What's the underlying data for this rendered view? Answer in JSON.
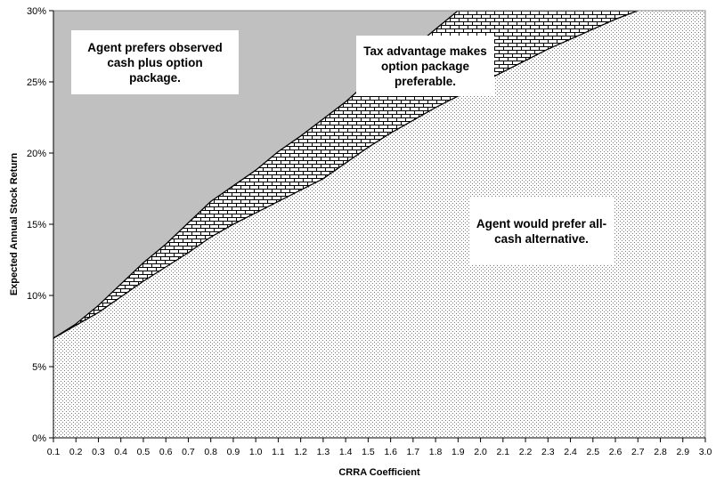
{
  "chart_data": {
    "type": "area",
    "title": "",
    "xlabel": "CRRA Coefficient",
    "ylabel": "Expected Annual Stock Return",
    "xlim": [
      0.1,
      3.0
    ],
    "ylim": [
      0,
      0.3
    ],
    "x_ticks": [
      0.1,
      0.2,
      0.3,
      0.4,
      0.5,
      0.6,
      0.7,
      0.8,
      0.9,
      1.0,
      1.1,
      1.2,
      1.3,
      1.4,
      1.5,
      1.6,
      1.7,
      1.8,
      1.9,
      2.0,
      2.1,
      2.2,
      2.3,
      2.4,
      2.5,
      2.6,
      2.7,
      2.8,
      2.9,
      3.0
    ],
    "x_tick_labels": [
      "0.1",
      "0.2",
      "0.3",
      "0.4",
      "0.5",
      "0.6",
      "0.7",
      "0.8",
      "0.9",
      "1.0",
      "1.1",
      "1.2",
      "1.3",
      "1.4",
      "1.5",
      "1.6",
      "1.7",
      "1.8",
      "1.9",
      "2.0",
      "2.1",
      "2.2",
      "2.3",
      "2.4",
      "2.5",
      "2.6",
      "2.7",
      "2.8",
      "2.9",
      "3.0"
    ],
    "y_ticks": [
      0,
      0.05,
      0.1,
      0.15,
      0.2,
      0.25,
      0.3
    ],
    "y_tick_labels": [
      "0%",
      "5%",
      "10%",
      "15%",
      "20%",
      "25%",
      "30%"
    ],
    "grid": false,
    "boundaries": [
      {
        "x": [
          0.1,
          0.2,
          0.3,
          0.4,
          0.5,
          0.6,
          0.7,
          0.8,
          0.9,
          1.0,
          1.1,
          1.2,
          1.3,
          1.4,
          1.5,
          1.6,
          1.7,
          1.8,
          1.9
        ],
        "y": [
          0.07,
          0.08,
          0.093,
          0.108,
          0.123,
          0.136,
          0.151,
          0.166,
          0.177,
          0.188,
          0.201,
          0.212,
          0.224,
          0.236,
          0.25,
          0.261,
          0.274,
          0.287,
          0.3
        ]
      },
      {
        "x": [
          0.1,
          0.2,
          0.3,
          0.4,
          0.5,
          0.6,
          0.7,
          0.8,
          0.9,
          1.0,
          1.1,
          1.2,
          1.3,
          1.4,
          1.5,
          1.6,
          1.7,
          1.8,
          1.9,
          2.0,
          2.1,
          2.2,
          2.3,
          2.4,
          2.5,
          2.6,
          2.7
        ],
        "y": [
          0.07,
          0.079,
          0.088,
          0.099,
          0.11,
          0.12,
          0.13,
          0.141,
          0.15,
          0.158,
          0.166,
          0.174,
          0.182,
          0.193,
          0.204,
          0.214,
          0.223,
          0.232,
          0.24,
          0.249,
          0.257,
          0.265,
          0.273,
          0.28,
          0.287,
          0.294,
          0.3
        ]
      }
    ],
    "regions": [
      {
        "name": "Agent prefers observed cash plus option package.",
        "fill": "#c0c0c0"
      },
      {
        "name": "Tax advantage makes option package preferable.",
        "fill": "brick-pattern"
      },
      {
        "name": "Agent would prefer all-cash alternative.",
        "fill": "dotted-pattern"
      }
    ],
    "annotations": [
      {
        "key": "top_left",
        "lines": [
          "Agent prefers observed",
          "cash plus option",
          "package."
        ]
      },
      {
        "key": "middle",
        "lines": [
          "Tax advantage makes",
          "option package",
          "preferable."
        ]
      },
      {
        "key": "lower_right",
        "lines": [
          "Agent would prefer all-",
          "cash alternative."
        ]
      }
    ]
  }
}
